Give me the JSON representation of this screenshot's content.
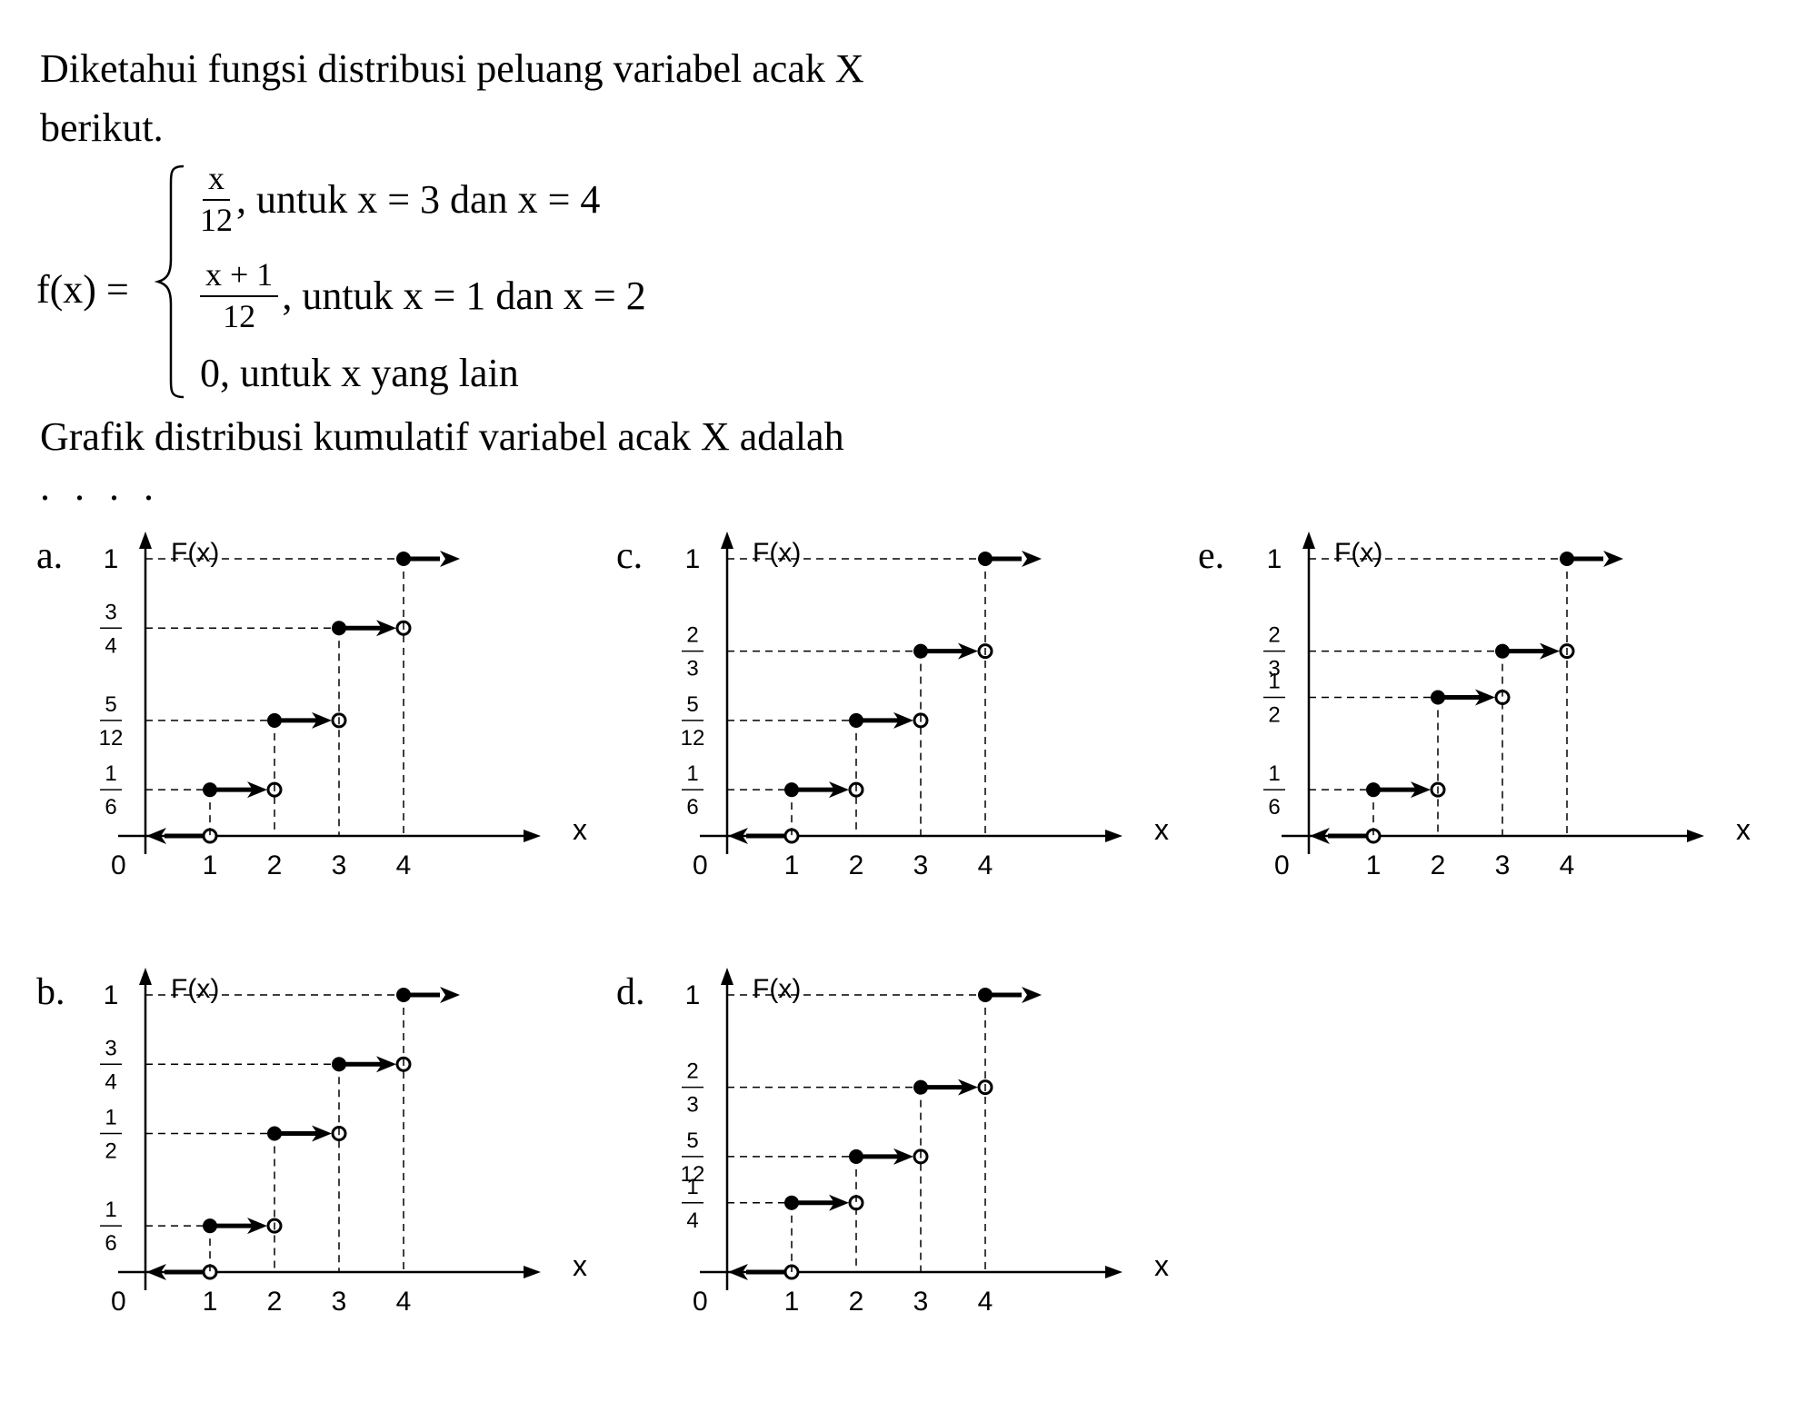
{
  "problem": {
    "intro_line1": "Diketahui fungsi distribusi peluang variabel acak X",
    "intro_line2": "berikut.",
    "function_label": "f(x) =",
    "cases": [
      {
        "num": "x",
        "den": "12",
        "text": ", untuk x = 3 dan x = 4"
      },
      {
        "num": "x + 1",
        "den": "12",
        "text": ", untuk x = 1 dan x = 2"
      },
      {
        "text": "0, untuk x yang lain"
      }
    ],
    "question_line1": "Grafik distribusi kumulatif variabel acak X adalah",
    "question_line2": ". . . ."
  },
  "chart_data": [
    {
      "option": "a.",
      "type": "step",
      "ylabel": "F(x)",
      "xlabel": "x",
      "origin_label": "0",
      "x_ticks": [
        "1",
        "2",
        "3",
        "4"
      ],
      "levels": [
        {
          "num": "1",
          "den": "6",
          "value": 0.1667
        },
        {
          "num": "5",
          "den": "12",
          "value": 0.4167
        },
        {
          "num": "3",
          "den": "4",
          "value": 0.75
        },
        {
          "num": "1",
          "den": "",
          "value": 1
        }
      ]
    },
    {
      "option": "c.",
      "type": "step",
      "ylabel": "F(x)",
      "xlabel": "x",
      "origin_label": "0",
      "x_ticks": [
        "1",
        "2",
        "3",
        "4"
      ],
      "levels": [
        {
          "num": "1",
          "den": "6",
          "value": 0.1667
        },
        {
          "num": "5",
          "den": "12",
          "value": 0.4167
        },
        {
          "num": "2",
          "den": "3",
          "value": 0.6667
        },
        {
          "num": "1",
          "den": "",
          "value": 1
        }
      ]
    },
    {
      "option": "e.",
      "type": "step",
      "ylabel": "F(x)",
      "xlabel": "x",
      "origin_label": "0",
      "x_ticks": [
        "1",
        "2",
        "3",
        "4"
      ],
      "levels": [
        {
          "num": "1",
          "den": "6",
          "value": 0.1667
        },
        {
          "num": "1",
          "den": "2",
          "value": 0.5
        },
        {
          "num": "2",
          "den": "3",
          "value": 0.6667
        },
        {
          "num": "1",
          "den": "",
          "value": 1
        }
      ]
    },
    {
      "option": "b.",
      "type": "step",
      "ylabel": "F(x)",
      "xlabel": "x",
      "origin_label": "0",
      "x_ticks": [
        "1",
        "2",
        "3",
        "4"
      ],
      "levels": [
        {
          "num": "1",
          "den": "6",
          "value": 0.1667
        },
        {
          "num": "1",
          "den": "2",
          "value": 0.5
        },
        {
          "num": "3",
          "den": "4",
          "value": 0.75
        },
        {
          "num": "1",
          "den": "",
          "value": 1
        }
      ]
    },
    {
      "option": "d.",
      "type": "step",
      "ylabel": "F(x)",
      "xlabel": "x",
      "origin_label": "0",
      "x_ticks": [
        "1",
        "2",
        "3",
        "4"
      ],
      "levels": [
        {
          "num": "1",
          "den": "4",
          "value": 0.25
        },
        {
          "num": "5",
          "den": "12",
          "value": 0.4167
        },
        {
          "num": "2",
          "den": "3",
          "value": 0.6667
        },
        {
          "num": "1",
          "den": "",
          "value": 1
        }
      ]
    }
  ]
}
